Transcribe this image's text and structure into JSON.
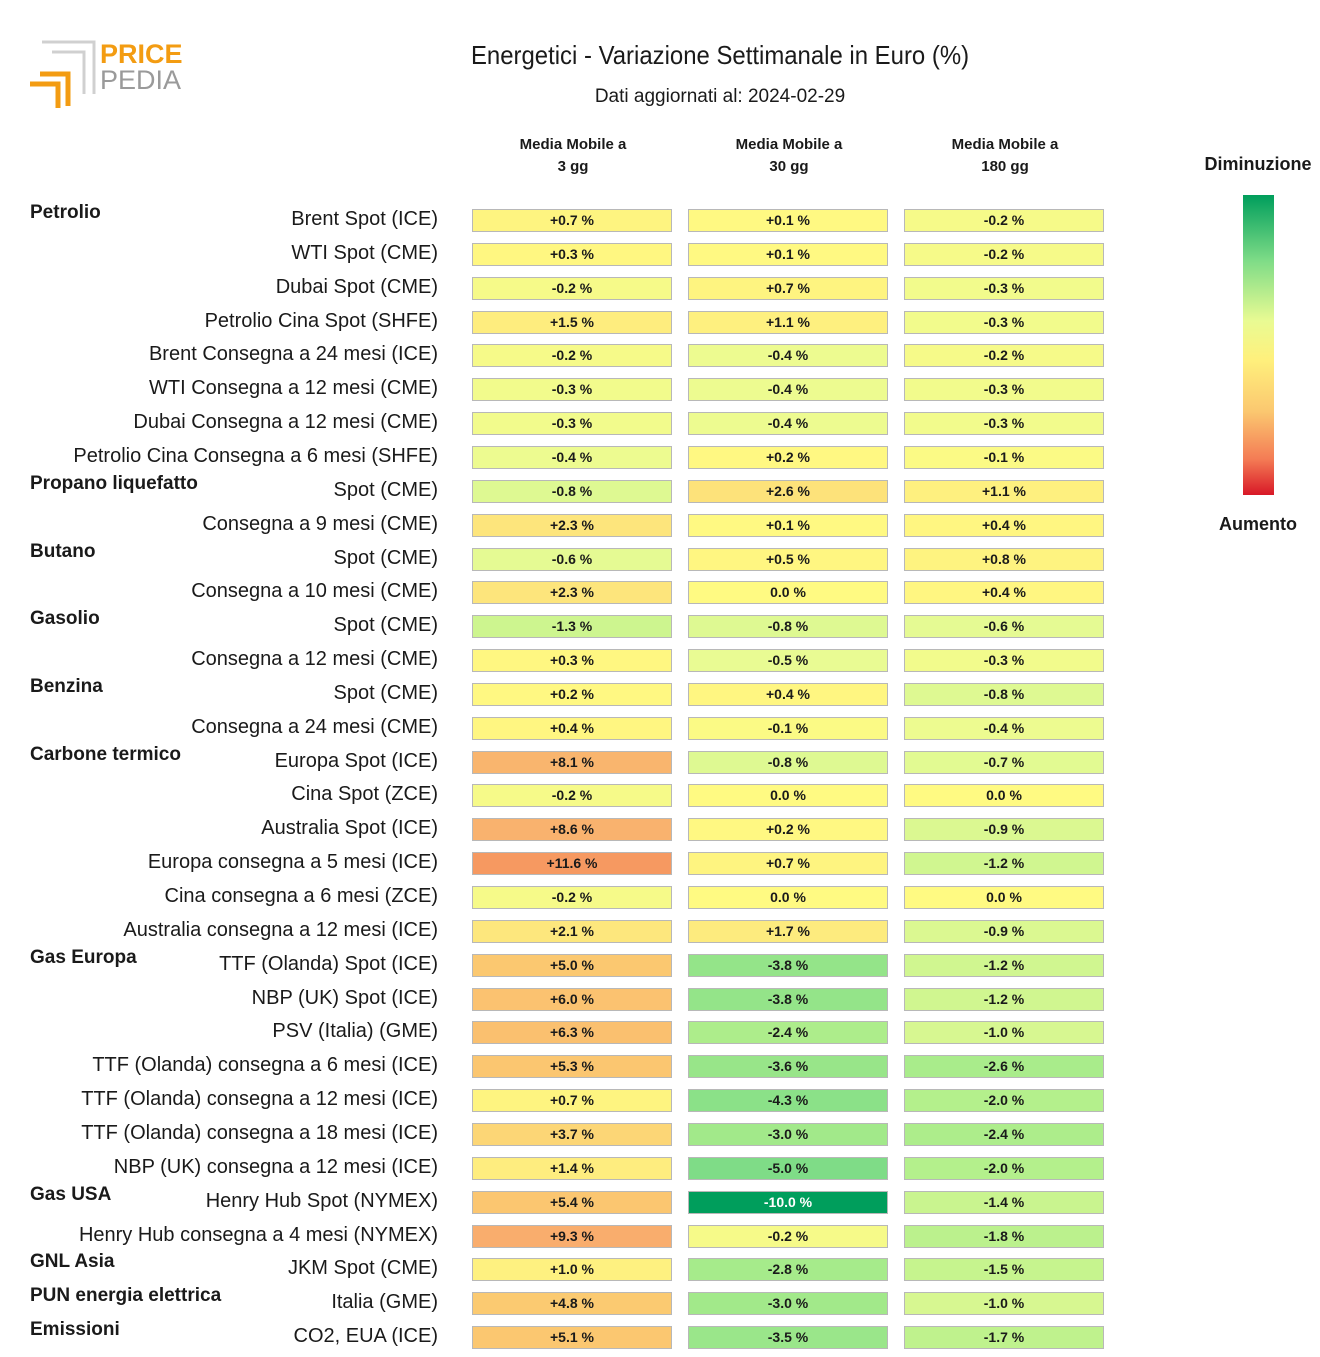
{
  "logo": {
    "line1": "PRICE",
    "line2": "PEDIA"
  },
  "title": "Energetici - Variazione Settimanale in Euro (%)",
  "subtitle": "Dati aggiornati al: 2024-02-29",
  "legend": {
    "top": "Diminuzione",
    "bottom": "Aumento",
    "colors": [
      "#009e5c",
      "#7fdc87",
      "#e9fb93",
      "#fff07c",
      "#fbc870",
      "#f47c55",
      "#d81827"
    ]
  },
  "chart_data": {
    "type": "heatmap",
    "title": "Energetici - Variazione Settimanale in Euro (%)",
    "columns": [
      {
        "line1": "Media Mobile a",
        "line2": "3 gg"
      },
      {
        "line1": "Media Mobile a",
        "line2": "30 gg"
      },
      {
        "line1": "Media Mobile a",
        "line2": "180 gg"
      }
    ],
    "unit": "%",
    "rows": [
      {
        "group": "Petrolio",
        "label": "Brent Spot (ICE)",
        "values": [
          0.7,
          0.1,
          -0.2
        ]
      },
      {
        "group": "",
        "label": "WTI Spot (CME)",
        "values": [
          0.3,
          0.1,
          -0.2
        ]
      },
      {
        "group": "",
        "label": "Dubai Spot (CME)",
        "values": [
          -0.2,
          0.7,
          -0.3
        ]
      },
      {
        "group": "",
        "label": "Petrolio Cina Spot (SHFE)",
        "values": [
          1.5,
          1.1,
          -0.3
        ]
      },
      {
        "group": "",
        "label": "Brent Consegna a 24 mesi (ICE)",
        "values": [
          -0.2,
          -0.4,
          -0.2
        ]
      },
      {
        "group": "",
        "label": "WTI Consegna a 12 mesi (CME)",
        "values": [
          -0.3,
          -0.4,
          -0.3
        ]
      },
      {
        "group": "",
        "label": "Dubai Consegna a 12 mesi (CME)",
        "values": [
          -0.3,
          -0.4,
          -0.3
        ]
      },
      {
        "group": "",
        "label": "Petrolio Cina Consegna a 6 mesi (SHFE)",
        "values": [
          -0.4,
          0.2,
          -0.1
        ]
      },
      {
        "group": "Propano liquefatto",
        "label": "Spot (CME)",
        "values": [
          -0.8,
          2.6,
          1.1
        ]
      },
      {
        "group": "",
        "label": "Consegna a 9 mesi (CME)",
        "values": [
          2.3,
          0.1,
          0.4
        ]
      },
      {
        "group": "Butano",
        "label": "Spot (CME)",
        "values": [
          -0.6,
          0.5,
          0.8
        ]
      },
      {
        "group": "",
        "label": "Consegna a 10 mesi (CME)",
        "values": [
          2.3,
          0.0,
          0.4
        ]
      },
      {
        "group": "Gasolio",
        "label": "Spot (CME)",
        "values": [
          -1.3,
          -0.8,
          -0.6
        ]
      },
      {
        "group": "",
        "label": "Consegna a 12 mesi (CME)",
        "values": [
          0.3,
          -0.5,
          -0.3
        ]
      },
      {
        "group": "Benzina",
        "label": "Spot (CME)",
        "values": [
          0.2,
          0.4,
          -0.8
        ]
      },
      {
        "group": "",
        "label": "Consegna a 24 mesi (CME)",
        "values": [
          0.4,
          -0.1,
          -0.4
        ]
      },
      {
        "group": "Carbone termico",
        "label": "Europa Spot (ICE)",
        "values": [
          8.1,
          -0.8,
          -0.7
        ]
      },
      {
        "group": "",
        "label": "Cina Spot (ZCE)",
        "values": [
          -0.2,
          0.0,
          0.0
        ]
      },
      {
        "group": "",
        "label": "Australia Spot (ICE)",
        "values": [
          8.6,
          0.2,
          -0.9
        ]
      },
      {
        "group": "",
        "label": "Europa consegna a 5 mesi (ICE)",
        "values": [
          11.6,
          0.7,
          -1.2
        ]
      },
      {
        "group": "",
        "label": "Cina consegna a 6 mesi (ZCE)",
        "values": [
          -0.2,
          0.0,
          0.0
        ]
      },
      {
        "group": "",
        "label": "Australia consegna a 12 mesi (ICE)",
        "values": [
          2.1,
          1.7,
          -0.9
        ]
      },
      {
        "group": "Gas Europa",
        "label": "TTF (Olanda) Spot (ICE)",
        "values": [
          5.0,
          -3.8,
          -1.2
        ]
      },
      {
        "group": "",
        "label": "NBP (UK) Spot (ICE)",
        "values": [
          6.0,
          -3.8,
          -1.2
        ]
      },
      {
        "group": "",
        "label": "PSV (Italia) (GME)",
        "values": [
          6.3,
          -2.4,
          -1.0
        ]
      },
      {
        "group": "",
        "label": "TTF (Olanda) consegna a 6 mesi (ICE)",
        "values": [
          5.3,
          -3.6,
          -2.6
        ]
      },
      {
        "group": "",
        "label": "TTF (Olanda) consegna a 12 mesi (ICE)",
        "values": [
          0.7,
          -4.3,
          -2.0
        ]
      },
      {
        "group": "",
        "label": "TTF (Olanda) consegna a 18 mesi (ICE)",
        "values": [
          3.7,
          -3.0,
          -2.4
        ]
      },
      {
        "group": "",
        "label": "NBP (UK) consegna a 12 mesi (ICE)",
        "values": [
          1.4,
          -5.0,
          -2.0
        ]
      },
      {
        "group": "Gas USA",
        "label": "Henry Hub Spot (NYMEX)",
        "values": [
          5.4,
          -10.0,
          -1.4
        ]
      },
      {
        "group": "",
        "label": "Henry Hub consegna a 4 mesi (NYMEX)",
        "values": [
          9.3,
          -0.2,
          -1.8
        ]
      },
      {
        "group": "GNL Asia",
        "label": "JKM Spot (CME)",
        "values": [
          1.0,
          -2.8,
          -1.5
        ]
      },
      {
        "group": "PUN energia elettrica",
        "label": "Italia (GME)",
        "values": [
          4.8,
          -3.0,
          -1.0
        ]
      },
      {
        "group": "Emissioni",
        "label": "CO2, EUA (ICE)",
        "values": [
          5.1,
          -3.5,
          -1.7
        ]
      }
    ]
  }
}
